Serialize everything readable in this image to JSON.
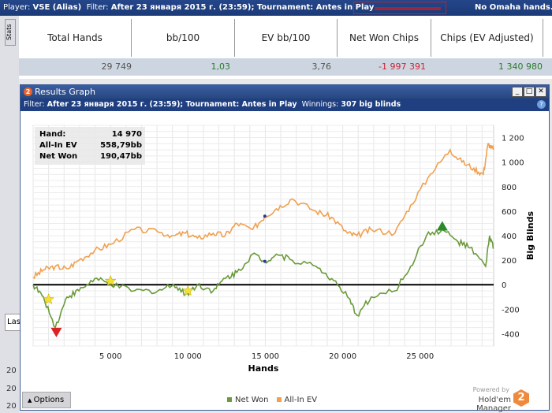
{
  "topbar": {
    "player_label": "Player:",
    "player": "VSE (Alias)",
    "filter_label": "Filter:",
    "filter": "After 23 января 2015 г. (23:59); Tournament: Antes in Play",
    "omaha": "No Omaha hands."
  },
  "stats": {
    "tab": "Stats",
    "headers": [
      "Total Hands",
      "bb/100",
      "EV bb/100",
      "Net Won Chips",
      "Chips (EV Adjusted)"
    ],
    "values": [
      "29 749",
      "1,03",
      "3,76",
      "-1 997 391",
      "1 340 980"
    ],
    "colors": [
      "#555555",
      "#2a7a2a",
      "#555555",
      "#cc2233",
      "#2a7a2a"
    ]
  },
  "background": {
    "tab": "Las",
    "rows": [
      "20",
      "20",
      "20"
    ]
  },
  "window": {
    "title": "Results Graph",
    "logo": "2",
    "filter_label": "Filter:",
    "filter": "After 23 января 2015 г. (23:59); Tournament: Antes in Play",
    "winnings_label": "Winnings:",
    "winnings": "307 big blinds",
    "help": "?",
    "options": "Options"
  },
  "tooltip": {
    "rows": [
      {
        "label": "Hand:",
        "value": "14 970"
      },
      {
        "label": "All-In EV",
        "value": "558,79bb"
      },
      {
        "label": "Net Won",
        "value": "190,47bb"
      }
    ]
  },
  "branding": {
    "powered": "Powered by",
    "name": "Hold'em Manager",
    "logo": "2"
  },
  "chart_data": {
    "type": "line",
    "xlabel": "Hands",
    "ylabel": "Big Blinds",
    "xlim": [
      0,
      29749
    ],
    "ylim": [
      -500,
      1300
    ],
    "xticks": [
      5000,
      10000,
      15000,
      20000,
      25000
    ],
    "xtick_labels": [
      "5 000",
      "10 000",
      "15 000",
      "20 000",
      "25 000"
    ],
    "yticks": [
      -400,
      -200,
      0,
      200,
      400,
      600,
      800,
      1000,
      1200
    ],
    "ytick_labels": [
      "-400",
      "-200",
      "0",
      "200",
      "400",
      "600",
      "800",
      "1 000",
      "1 200"
    ],
    "grid": true,
    "legend": "bottom-center",
    "series": [
      {
        "name": "Net Won",
        "color": "#6a9a3a",
        "points": [
          [
            0,
            0
          ],
          [
            663,
            -100
          ],
          [
            1430,
            -350
          ],
          [
            2190,
            -100
          ],
          [
            2960,
            -50
          ],
          [
            3980,
            50
          ],
          [
            5000,
            0
          ],
          [
            6530,
            -50
          ],
          [
            8060,
            -50
          ],
          [
            9080,
            0
          ],
          [
            9850,
            -80
          ],
          [
            10610,
            0
          ],
          [
            11630,
            -50
          ],
          [
            12400,
            50
          ],
          [
            13160,
            100
          ],
          [
            14180,
            250
          ],
          [
            14970,
            190
          ],
          [
            15710,
            250
          ],
          [
            16730,
            200
          ],
          [
            18270,
            150
          ],
          [
            19290,
            50
          ],
          [
            20310,
            -100
          ],
          [
            20920,
            -250
          ],
          [
            21840,
            -100
          ],
          [
            23370,
            -50
          ],
          [
            24390,
            150
          ],
          [
            25410,
            400
          ],
          [
            26430,
            450
          ],
          [
            27450,
            350
          ],
          [
            28210,
            300
          ],
          [
            29230,
            150
          ],
          [
            29490,
            400
          ],
          [
            29749,
            300
          ]
        ]
      },
      {
        "name": "All-In EV",
        "color": "#f0a050",
        "points": [
          [
            0,
            60
          ],
          [
            663,
            120
          ],
          [
            1430,
            150
          ],
          [
            2190,
            130
          ],
          [
            2960,
            200
          ],
          [
            3980,
            280
          ],
          [
            5000,
            330
          ],
          [
            6530,
            450
          ],
          [
            8060,
            430
          ],
          [
            9080,
            400
          ],
          [
            9850,
            420
          ],
          [
            10610,
            380
          ],
          [
            11630,
            420
          ],
          [
            12400,
            400
          ],
          [
            13160,
            500
          ],
          [
            14180,
            450
          ],
          [
            14970,
            559
          ],
          [
            15710,
            620
          ],
          [
            16730,
            700
          ],
          [
            18270,
            600
          ],
          [
            19290,
            550
          ],
          [
            20310,
            420
          ],
          [
            20920,
            400
          ],
          [
            21840,
            450
          ],
          [
            23370,
            420
          ],
          [
            24390,
            650
          ],
          [
            25660,
            900
          ],
          [
            26940,
            1100
          ],
          [
            27700,
            1000
          ],
          [
            28470,
            950
          ],
          [
            29080,
            900
          ],
          [
            29390,
            1150
          ],
          [
            29749,
            1100
          ]
        ]
      }
    ],
    "markers": [
      {
        "type": "max",
        "series": "Net Won",
        "x": 26430,
        "y": 480,
        "color": "#2a8a2a"
      },
      {
        "type": "min",
        "series": "Net Won",
        "x": 1500,
        "y": -390,
        "color": "#dd2222"
      },
      {
        "type": "star",
        "x": 1000,
        "y": -120,
        "color": "#f5e030"
      },
      {
        "type": "star",
        "x": 5000,
        "y": 30,
        "color": "#f5e030"
      },
      {
        "type": "star",
        "x": 10000,
        "y": -50,
        "color": "#f5e030"
      }
    ]
  }
}
